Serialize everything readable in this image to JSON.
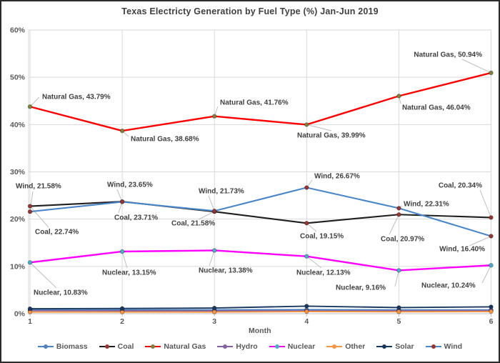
{
  "chart_data": {
    "type": "line",
    "title": "Texas Electricty Generation by Fuel Type (%) Jan-Jun 2019",
    "xlabel": "Month",
    "x": [
      1,
      2,
      3,
      4,
      5,
      6
    ],
    "ylim": [
      0,
      60
    ],
    "ytick_step": 10,
    "ytick_format": "percent",
    "grid": true,
    "legend_position": "bottom",
    "label_format": "{name}, {value}%",
    "series": [
      {
        "name": "Biomass",
        "line_color": "#4f81bd",
        "marker_color": "#4f81bd",
        "labeled": false,
        "values": [
          0.8,
          0.8,
          0.8,
          0.85,
          0.8,
          0.8
        ]
      },
      {
        "name": "Coal",
        "line_color": "#1f1f1f",
        "marker_color": "#943634",
        "labeled": true,
        "values": [
          22.74,
          23.71,
          21.58,
          19.15,
          20.97,
          20.34
        ]
      },
      {
        "name": "Natural Gas",
        "line_color": "#fe0000",
        "marker_color": "#7f7f3f",
        "labeled": true,
        "values": [
          43.79,
          38.68,
          41.76,
          39.99,
          46.04,
          50.94
        ]
      },
      {
        "name": "Hydro",
        "line_color": "#8064a2",
        "marker_color": "#8064a2",
        "labeled": false,
        "values": [
          0.65,
          0.6,
          0.6,
          0.6,
          0.6,
          0.65
        ]
      },
      {
        "name": "Nuclear",
        "line_color": "#ff00ff",
        "marker_color": "#4bacc6",
        "labeled": true,
        "values": [
          10.83,
          13.15,
          13.38,
          12.13,
          9.16,
          10.24
        ]
      },
      {
        "name": "Other",
        "line_color": "#f79646",
        "marker_color": "#f79646",
        "labeled": false,
        "values": [
          0.35,
          0.35,
          0.35,
          0.45,
          0.4,
          0.45
        ]
      },
      {
        "name": "Solar",
        "line_color": "#17375e",
        "marker_color": "#17375e",
        "labeled": false,
        "values": [
          1.05,
          1.1,
          1.2,
          1.6,
          1.3,
          1.45
        ]
      },
      {
        "name": "Wind",
        "line_color": "#4a86c8",
        "marker_color": "#943634",
        "labeled": true,
        "values": [
          21.58,
          23.65,
          21.73,
          26.67,
          22.31,
          16.4
        ]
      }
    ],
    "colors": {
      "grid": "#d9d9d9",
      "axis_line": "#bfbfbf",
      "tick_text": "#595959",
      "label_text": "#404040",
      "leader_line": "#bfbfbf",
      "plot_border": "#d9d9d9"
    }
  }
}
